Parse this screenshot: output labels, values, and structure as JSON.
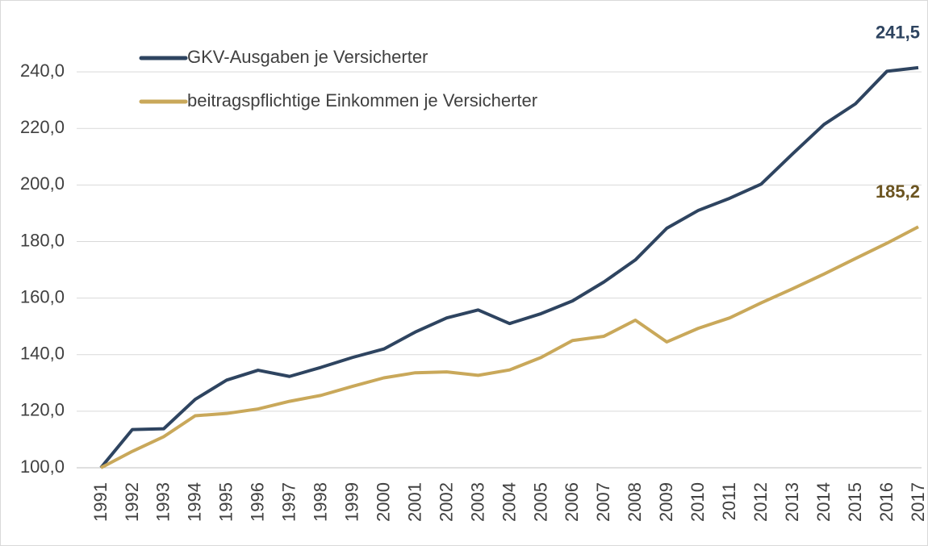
{
  "chart_data": {
    "type": "line",
    "categories": [
      "1991",
      "1992",
      "1993",
      "1994",
      "1995",
      "1996",
      "1997",
      "1998",
      "1999",
      "2000",
      "2001",
      "2002",
      "2003",
      "2004",
      "2005",
      "2006",
      "2007",
      "2008",
      "2009",
      "2010",
      "2011",
      "2012",
      "2013",
      "2014",
      "2015",
      "2016",
      "2017"
    ],
    "series": [
      {
        "name": "GKV-Ausgaben je Versicherter",
        "color": "#2e4460",
        "label_color": "#2e4460",
        "values": [
          100,
          113.5,
          113.8,
          124.2,
          131,
          134.5,
          132.3,
          135.5,
          139,
          142,
          148,
          153,
          155.8,
          151,
          154.5,
          159,
          165.7,
          173.5,
          184.7,
          191,
          195.3,
          200.3,
          211,
          221.4,
          228.7,
          240.2,
          241.5
        ],
        "value_labels": [
          null,
          null,
          null,
          null,
          null,
          null,
          null,
          null,
          null,
          null,
          null,
          null,
          null,
          null,
          null,
          null,
          null,
          null,
          null,
          null,
          null,
          null,
          null,
          null,
          null,
          null,
          "241,5"
        ]
      },
      {
        "name": "beitragspflichtige Einkommen je Versicherter",
        "color": "#c9a85a",
        "label_color": "#6b5420",
        "values": [
          100,
          105.8,
          111,
          118.4,
          119.2,
          120.8,
          123.5,
          125.6,
          128.8,
          131.8,
          133.6,
          133.9,
          132.7,
          134.6,
          139,
          145,
          146.5,
          152.2,
          144.5,
          149.3,
          153,
          158.3,
          163.3,
          168.5,
          174,
          179.4,
          185.2
        ],
        "value_labels": [
          null,
          null,
          null,
          null,
          null,
          null,
          null,
          null,
          null,
          null,
          null,
          null,
          null,
          null,
          null,
          null,
          null,
          null,
          null,
          null,
          null,
          null,
          null,
          null,
          null,
          null,
          "185,2"
        ]
      }
    ],
    "ylim": [
      100,
      260
    ],
    "yticks": [
      {
        "value": 100,
        "label": "100,0"
      },
      {
        "value": 120,
        "label": "120,0"
      },
      {
        "value": 140,
        "label": "140,0"
      },
      {
        "value": 160,
        "label": "160,0"
      },
      {
        "value": 180,
        "label": "180,0"
      },
      {
        "value": 200,
        "label": "200,0"
      },
      {
        "value": 220,
        "label": "220,0"
      },
      {
        "value": 240,
        "label": "240,0"
      }
    ],
    "grid": true,
    "legend": "top-left"
  }
}
